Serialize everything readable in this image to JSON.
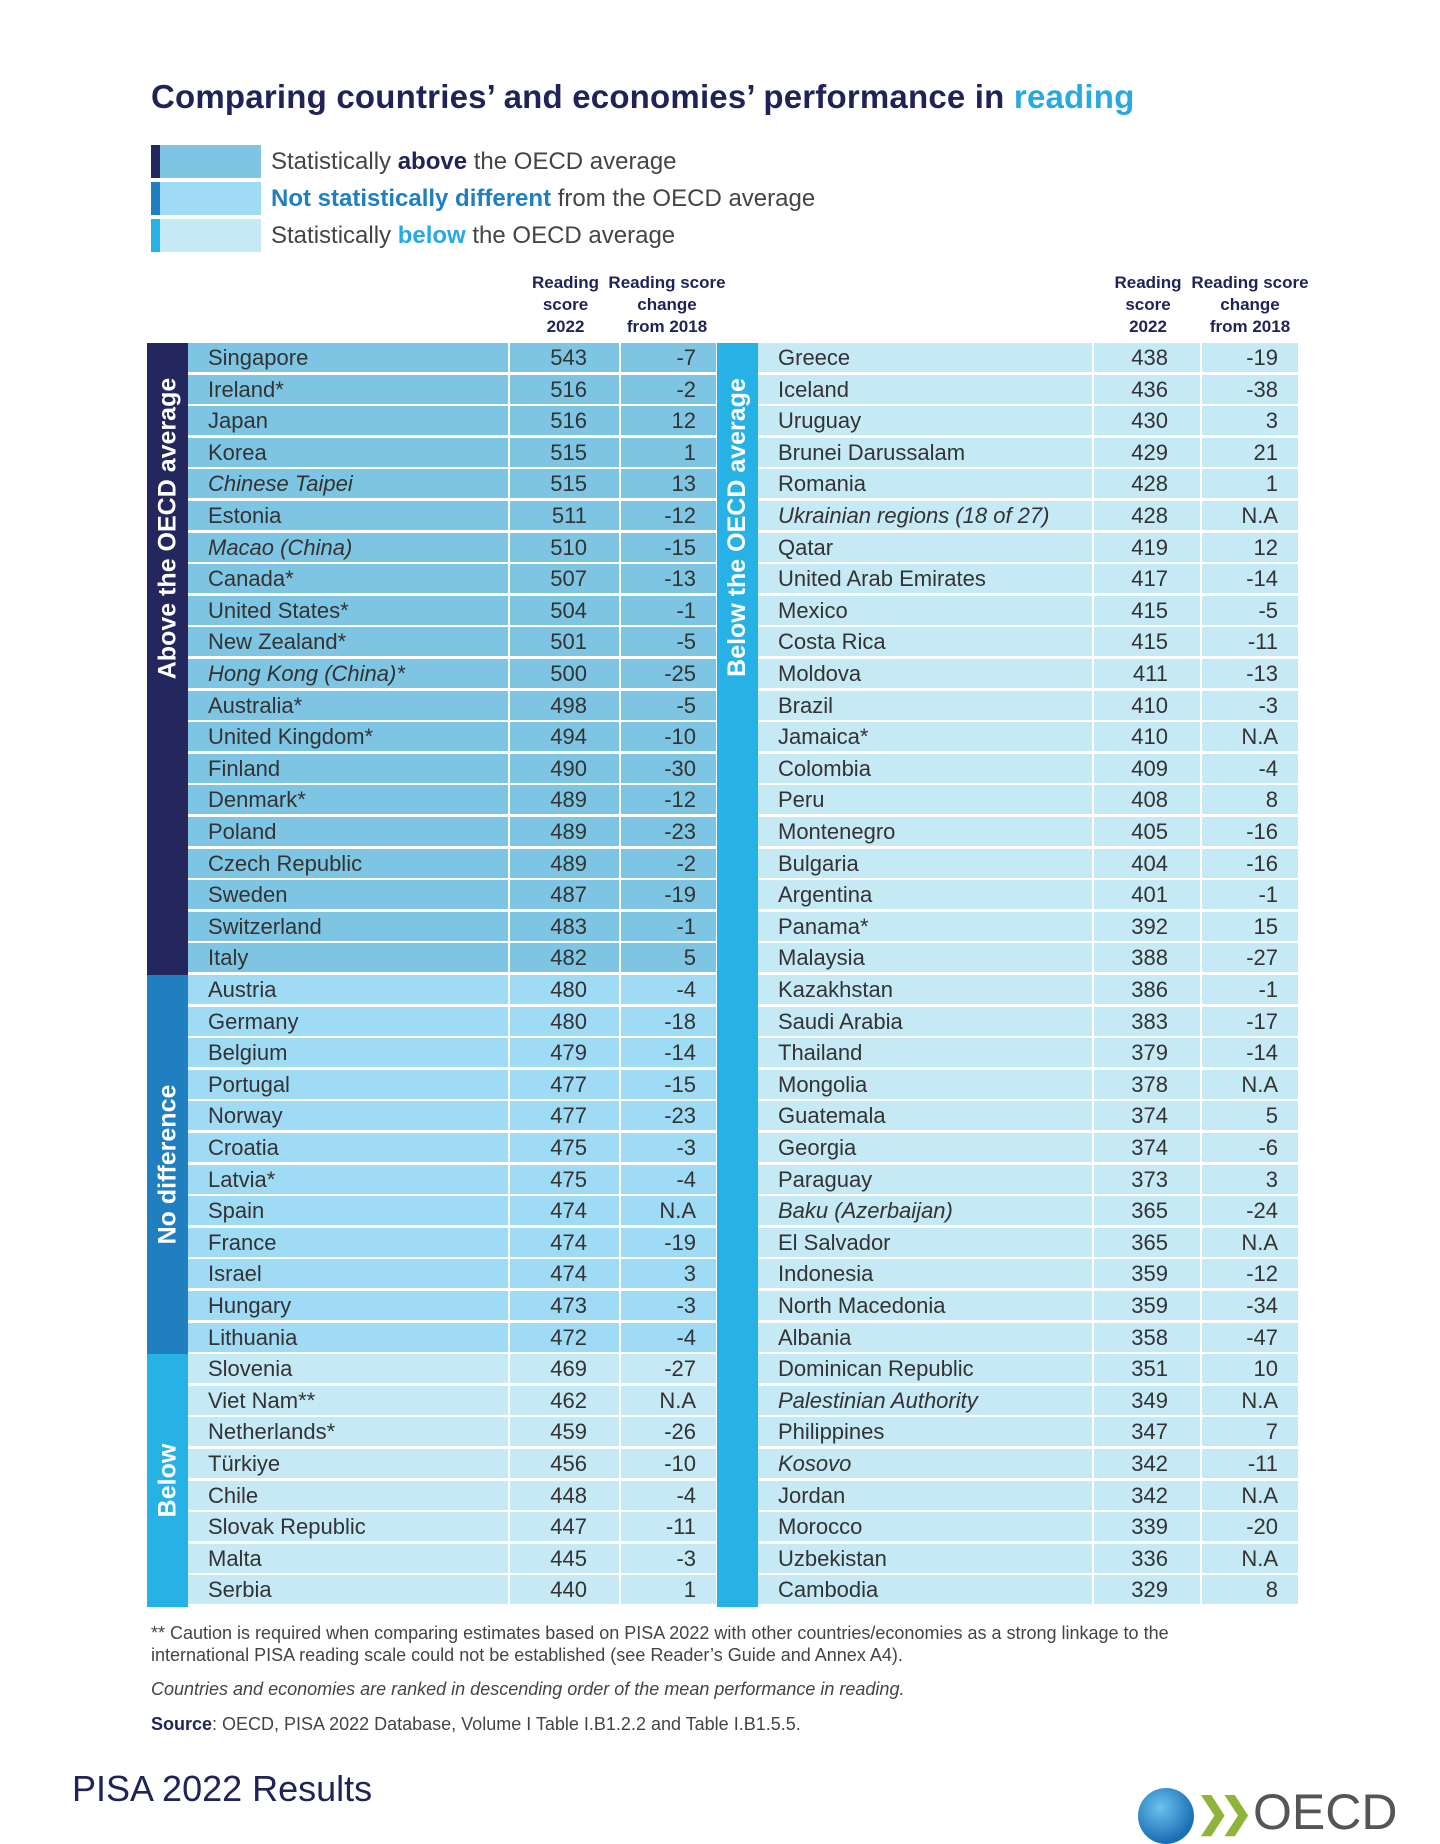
{
  "title": {
    "main": "Comparing countries’ and economies’ performance in ",
    "highlight": "reading"
  },
  "legend": [
    {
      "pre": "Statistically ",
      "bold": "above",
      "post": " the OECD average",
      "bold_color": "#1f2357"
    },
    {
      "pre": "",
      "bold": "Not statistically different",
      "post": " from the OECD average",
      "bold_color": "#1f7fc0"
    },
    {
      "pre": "Statistically ",
      "bold": "below",
      "post": " the OECD average",
      "bold_color": "#27a9e1"
    }
  ],
  "colors": {
    "above": {
      "band": "#24265e",
      "row": "#7ec5e3"
    },
    "same": {
      "band": "#1f7fc0",
      "row": "#9fdbf4"
    },
    "below": {
      "band": "#27b2e6",
      "row": "#c6e9f6"
    }
  },
  "headers": {
    "score": [
      "Reading",
      "score",
      "2022"
    ],
    "change": [
      "Reading score",
      "change",
      "from 2018"
    ]
  },
  "band_labels": {
    "left_above": "Above the OECD average",
    "left_same": "No difference",
    "left_below": "Below",
    "right_below": "Below the OECD average"
  },
  "left_rows": [
    {
      "name": "Singapore",
      "score": "543",
      "change": "-7",
      "group": "above"
    },
    {
      "name": "Ireland*",
      "score": "516",
      "change": "-2",
      "group": "above"
    },
    {
      "name": "Japan",
      "score": "516",
      "change": "12",
      "group": "above"
    },
    {
      "name": "Korea",
      "score": "515",
      "change": "1",
      "group": "above"
    },
    {
      "name": "Chinese Taipei",
      "score": "515",
      "change": "13",
      "group": "above",
      "italic": true
    },
    {
      "name": "Estonia",
      "score": "511",
      "change": "-12",
      "group": "above"
    },
    {
      "name": "Macao (China)",
      "score": "510",
      "change": "-15",
      "group": "above",
      "italic": true
    },
    {
      "name": "Canada*",
      "score": "507",
      "change": "-13",
      "group": "above"
    },
    {
      "name": "United States*",
      "score": "504",
      "change": "-1",
      "group": "above"
    },
    {
      "name": "New Zealand*",
      "score": "501",
      "change": "-5",
      "group": "above"
    },
    {
      "name": "Hong Kong (China)*",
      "score": "500",
      "change": "-25",
      "group": "above",
      "italic": true
    },
    {
      "name": "Australia*",
      "score": "498",
      "change": "-5",
      "group": "above"
    },
    {
      "name": "United Kingdom*",
      "score": "494",
      "change": "-10",
      "group": "above"
    },
    {
      "name": "Finland",
      "score": "490",
      "change": "-30",
      "group": "above"
    },
    {
      "name": "Denmark*",
      "score": "489",
      "change": "-12",
      "group": "above"
    },
    {
      "name": "Poland",
      "score": "489",
      "change": "-23",
      "group": "above"
    },
    {
      "name": "Czech Republic",
      "score": "489",
      "change": "-2",
      "group": "above"
    },
    {
      "name": "Sweden",
      "score": "487",
      "change": "-19",
      "group": "above"
    },
    {
      "name": "Switzerland",
      "score": "483",
      "change": "-1",
      "group": "above"
    },
    {
      "name": "Italy",
      "score": "482",
      "change": "5",
      "group": "above"
    },
    {
      "name": "Austria",
      "score": "480",
      "change": "-4",
      "group": "same"
    },
    {
      "name": "Germany",
      "score": "480",
      "change": "-18",
      "group": "same"
    },
    {
      "name": "Belgium",
      "score": "479",
      "change": "-14",
      "group": "same"
    },
    {
      "name": "Portugal",
      "score": "477",
      "change": "-15",
      "group": "same"
    },
    {
      "name": "Norway",
      "score": "477",
      "change": "-23",
      "group": "same"
    },
    {
      "name": "Croatia",
      "score": "475",
      "change": "-3",
      "group": "same"
    },
    {
      "name": "Latvia*",
      "score": "475",
      "change": "-4",
      "group": "same"
    },
    {
      "name": "Spain",
      "score": "474",
      "change": "N.A",
      "group": "same"
    },
    {
      "name": "France",
      "score": "474",
      "change": "-19",
      "group": "same"
    },
    {
      "name": "Israel",
      "score": "474",
      "change": "3",
      "group": "same"
    },
    {
      "name": "Hungary",
      "score": "473",
      "change": "-3",
      "group": "same"
    },
    {
      "name": "Lithuania",
      "score": "472",
      "change": "-4",
      "group": "same"
    },
    {
      "name": "Slovenia",
      "score": "469",
      "change": "-27",
      "group": "below"
    },
    {
      "name": "Viet Nam**",
      "score": "462",
      "change": "N.A",
      "group": "below"
    },
    {
      "name": "Netherlands*",
      "score": "459",
      "change": "-26",
      "group": "below"
    },
    {
      "name": "Türkiye",
      "score": "456",
      "change": "-10",
      "group": "below"
    },
    {
      "name": "Chile",
      "score": "448",
      "change": "-4",
      "group": "below"
    },
    {
      "name": "Slovak Republic",
      "score": "447",
      "change": "-11",
      "group": "below"
    },
    {
      "name": "Malta",
      "score": "445",
      "change": "-3",
      "group": "below"
    },
    {
      "name": "Serbia",
      "score": "440",
      "change": "1",
      "group": "below"
    }
  ],
  "right_rows": [
    {
      "name": "Greece",
      "score": "438",
      "change": "-19",
      "group": "below"
    },
    {
      "name": "Iceland",
      "score": "436",
      "change": "-38",
      "group": "below"
    },
    {
      "name": "Uruguay",
      "score": "430",
      "change": "3",
      "group": "below"
    },
    {
      "name": "Brunei Darussalam",
      "score": "429",
      "change": "21",
      "group": "below"
    },
    {
      "name": "Romania",
      "score": "428",
      "change": "1",
      "group": "below"
    },
    {
      "name": "Ukrainian regions (18 of 27)",
      "score": "428",
      "change": "N.A",
      "group": "below",
      "italic": true
    },
    {
      "name": "Qatar",
      "score": "419",
      "change": "12",
      "group": "below"
    },
    {
      "name": "United Arab Emirates",
      "score": "417",
      "change": "-14",
      "group": "below"
    },
    {
      "name": "Mexico",
      "score": "415",
      "change": "-5",
      "group": "below"
    },
    {
      "name": "Costa Rica",
      "score": "415",
      "change": "-11",
      "group": "below"
    },
    {
      "name": "Moldova",
      "score": "411",
      "change": "-13",
      "group": "below"
    },
    {
      "name": "Brazil",
      "score": "410",
      "change": "-3",
      "group": "below"
    },
    {
      "name": "Jamaica*",
      "score": "410",
      "change": "N.A",
      "group": "below"
    },
    {
      "name": "Colombia",
      "score": "409",
      "change": "-4",
      "group": "below"
    },
    {
      "name": "Peru",
      "score": "408",
      "change": "8",
      "group": "below"
    },
    {
      "name": "Montenegro",
      "score": "405",
      "change": "-16",
      "group": "below"
    },
    {
      "name": "Bulgaria",
      "score": "404",
      "change": "-16",
      "group": "below"
    },
    {
      "name": "Argentina",
      "score": "401",
      "change": "-1",
      "group": "below"
    },
    {
      "name": "Panama*",
      "score": "392",
      "change": "15",
      "group": "below"
    },
    {
      "name": "Malaysia",
      "score": "388",
      "change": "-27",
      "group": "below"
    },
    {
      "name": "Kazakhstan",
      "score": "386",
      "change": "-1",
      "group": "below"
    },
    {
      "name": "Saudi Arabia",
      "score": "383",
      "change": "-17",
      "group": "below"
    },
    {
      "name": "Thailand",
      "score": "379",
      "change": "-14",
      "group": "below"
    },
    {
      "name": "Mongolia",
      "score": "378",
      "change": "N.A",
      "group": "below"
    },
    {
      "name": "Guatemala",
      "score": "374",
      "change": "5",
      "group": "below"
    },
    {
      "name": "Georgia",
      "score": "374",
      "change": "-6",
      "group": "below"
    },
    {
      "name": "Paraguay",
      "score": "373",
      "change": "3",
      "group": "below"
    },
    {
      "name": "Baku (Azerbaijan)",
      "score": "365",
      "change": "-24",
      "group": "below",
      "italic": true
    },
    {
      "name": "El Salvador",
      "score": "365",
      "change": "N.A",
      "group": "below"
    },
    {
      "name": "Indonesia",
      "score": "359",
      "change": "-12",
      "group": "below"
    },
    {
      "name": "North Macedonia",
      "score": "359",
      "change": "-34",
      "group": "below"
    },
    {
      "name": "Albania",
      "score": "358",
      "change": "-47",
      "group": "below"
    },
    {
      "name": "Dominican Republic",
      "score": "351",
      "change": "10",
      "group": "below"
    },
    {
      "name": "Palestinian Authority",
      "score": "349",
      "change": "N.A",
      "group": "below",
      "italic": true
    },
    {
      "name": "Philippines",
      "score": "347",
      "change": "7",
      "group": "below"
    },
    {
      "name": "Kosovo",
      "score": "342",
      "change": "-11",
      "group": "below",
      "italic": true
    },
    {
      "name": "Jordan",
      "score": "342",
      "change": "N.A",
      "group": "below"
    },
    {
      "name": "Morocco",
      "score": "339",
      "change": "-20",
      "group": "below"
    },
    {
      "name": "Uzbekistan",
      "score": "336",
      "change": "N.A",
      "group": "below"
    },
    {
      "name": "Cambodia",
      "score": "329",
      "change": "8",
      "group": "below"
    }
  ],
  "footnotes": {
    "caution_1": "** Caution is required when comparing estimates based on PISA 2022 with other countries/economies as a strong linkage to the",
    "caution_2": "international PISA reading scale could not be established (see Reader’s Guide and Annex A4).",
    "ranking": "Countries and economies are ranked in descending order of the mean performance in reading.",
    "source_label": "Source",
    "source_text": ": OECD, PISA 2022 Database, Volume I Table I.B1.2.2 and Table I.B1.5.5."
  },
  "footer": {
    "publication": "PISA 2022 Results",
    "logo_text": "OECD"
  }
}
